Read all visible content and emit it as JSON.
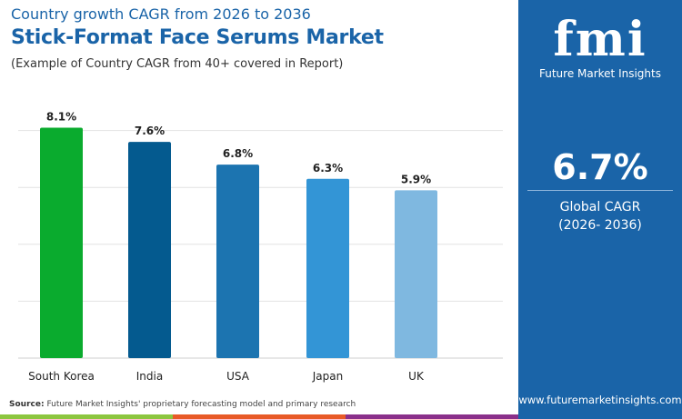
{
  "header": {
    "subtitle": "Country growth CAGR from 2026 to 2036",
    "title": "Stick-Format Face Serums Market",
    "note": "(Example of Country CAGR from 40+ covered in Report)"
  },
  "panel": {
    "logo_text": "fmi",
    "brand": "Future Market Insights",
    "value": "6.7%",
    "label": "Global CAGR",
    "period": "(2026- 2036)",
    "website": "www.futuremarketinsights.com",
    "bg": "#1a64a8"
  },
  "footer": {
    "source_label": "Source:",
    "source_text": "Future Market Insights' proprietary forecasting model and primary research"
  },
  "chart_data": {
    "type": "bar",
    "categories": [
      "South Korea",
      "India",
      "USA",
      "Japan",
      "UK"
    ],
    "values": [
      8.1,
      7.6,
      6.8,
      6.3,
      5.9
    ],
    "labels": [
      "8.1%",
      "7.6%",
      "6.8%",
      "6.3%",
      "5.9%"
    ],
    "colors": [
      "#0aab2e",
      "#045a8f",
      "#1c74b0",
      "#3395d6",
      "#7fb8e0"
    ],
    "ylim": [
      0,
      10
    ],
    "grid": true,
    "xlabel": "",
    "ylabel": ""
  }
}
